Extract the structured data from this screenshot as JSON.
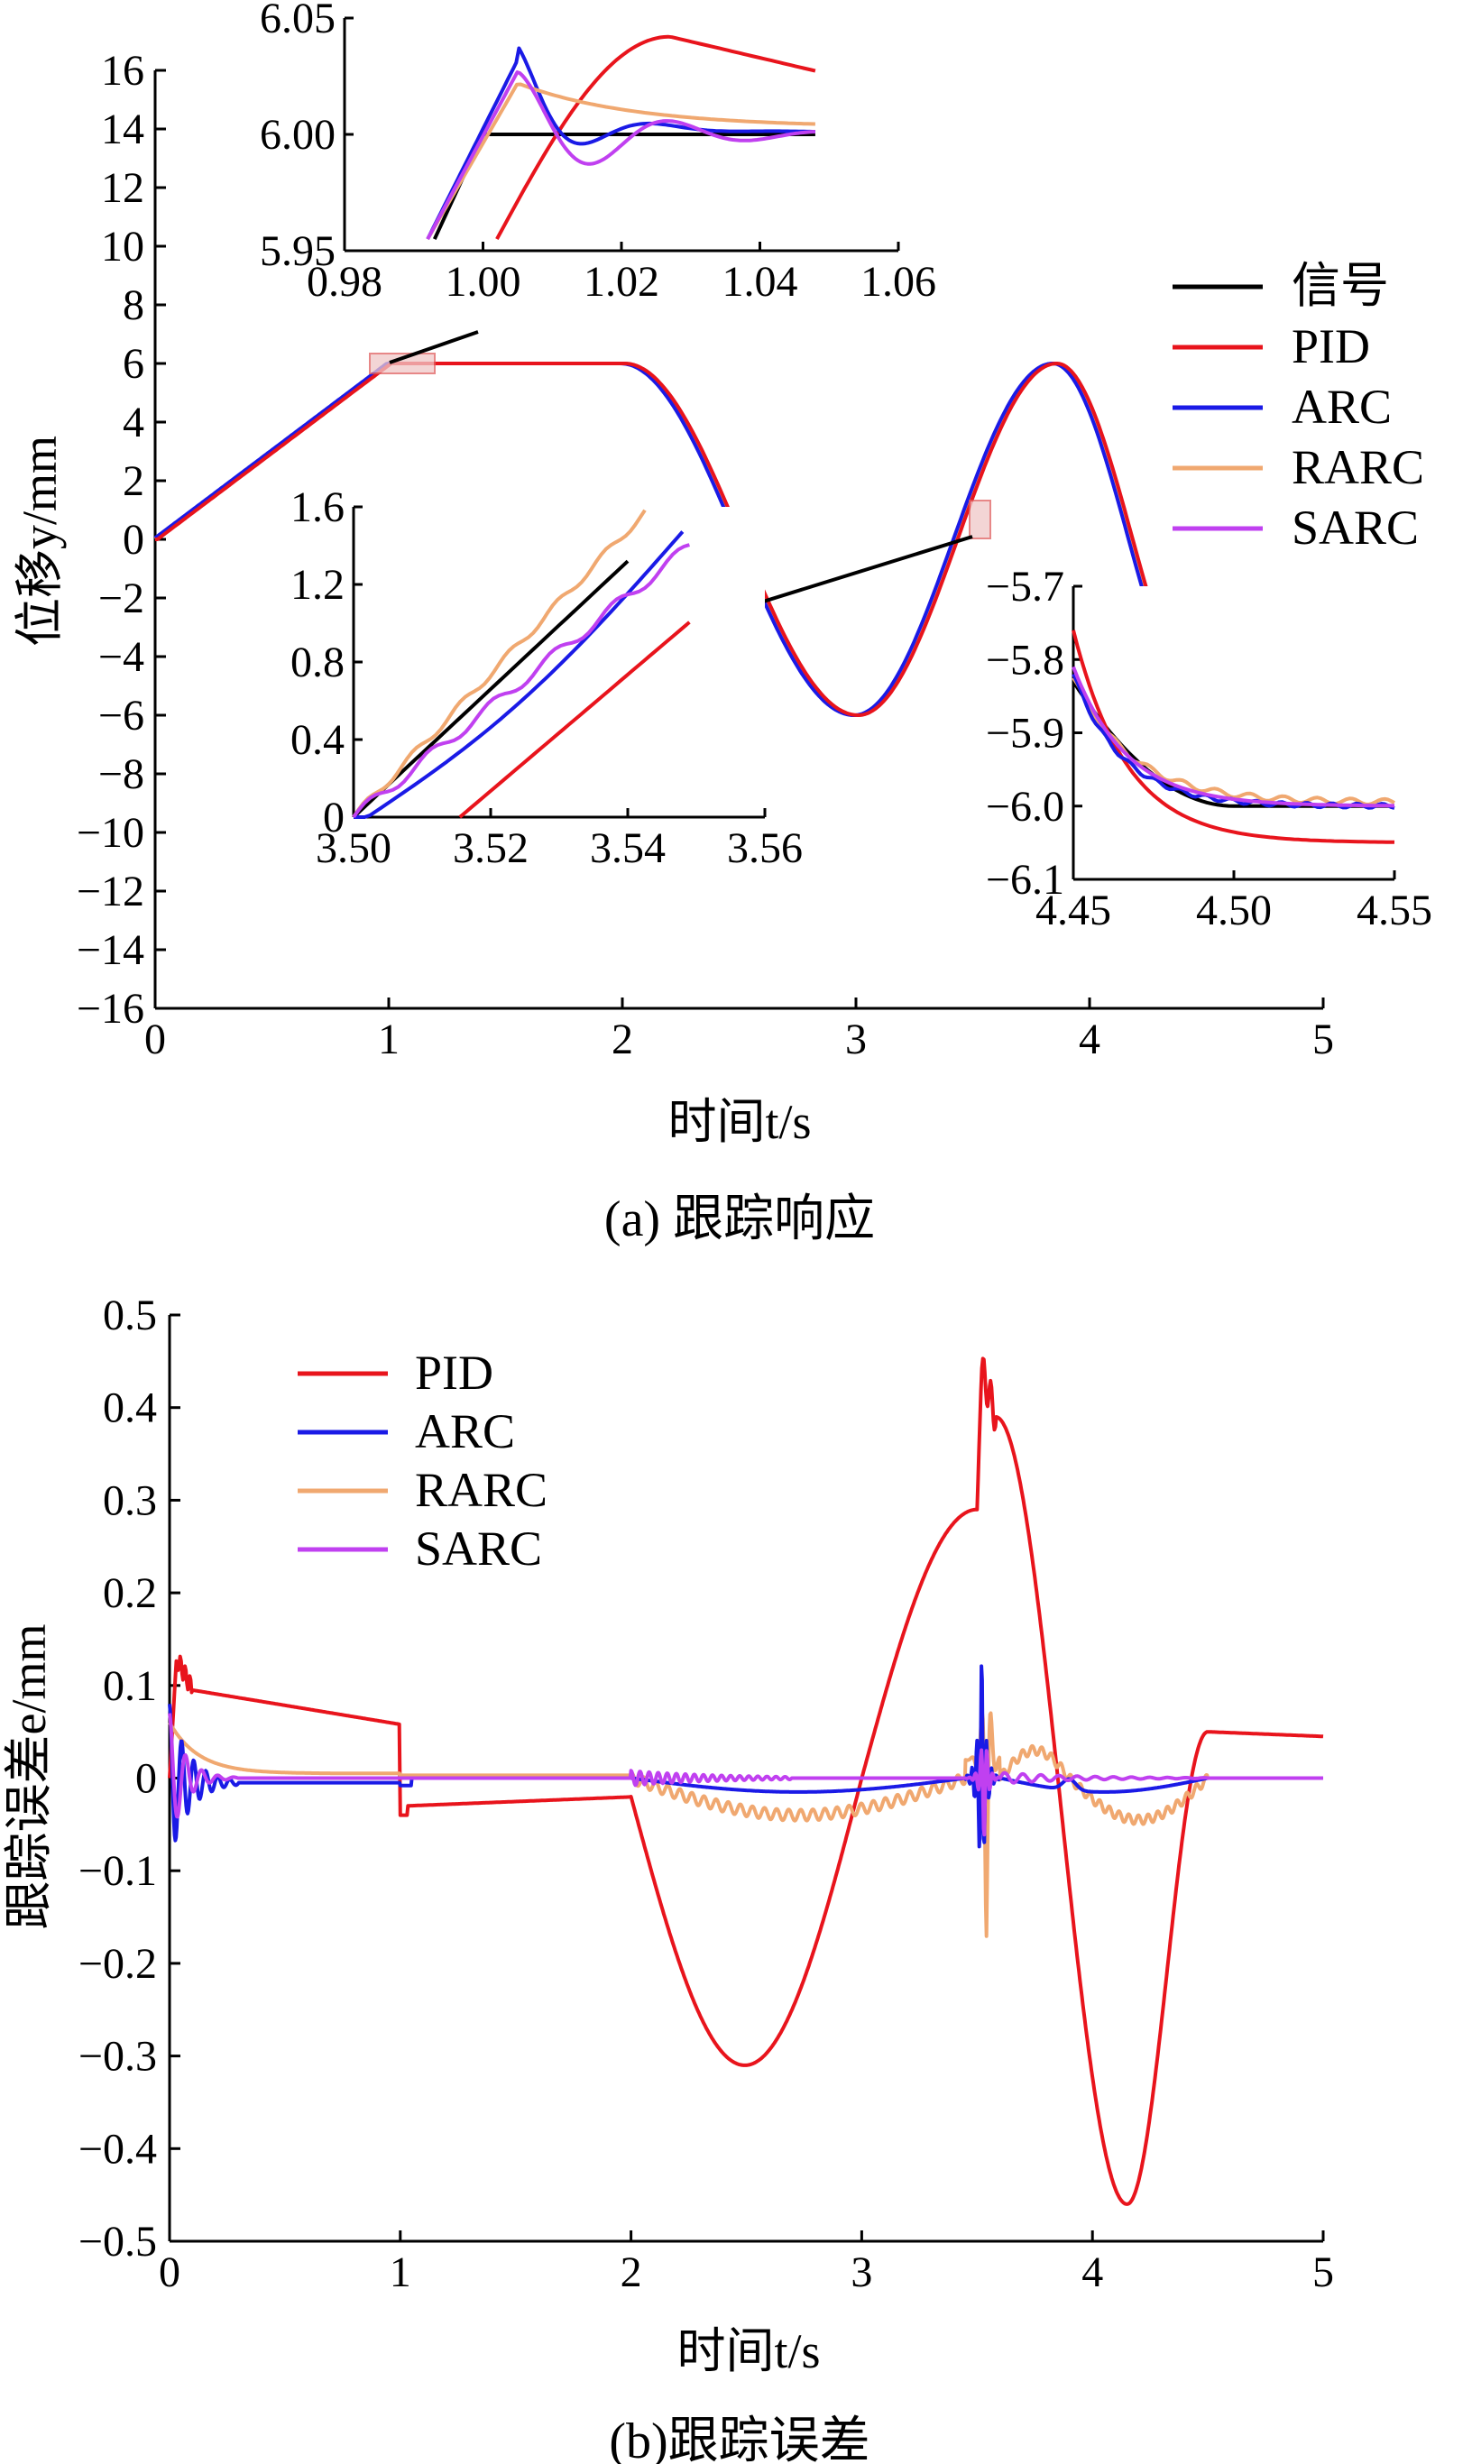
{
  "chart_data": [
    {
      "type": "line",
      "caption": "(a) 跟踪响应",
      "ylabel": "位移y/mm",
      "xlabel": "时间t/s",
      "xlim": [
        0,
        5
      ],
      "ylim": [
        -16,
        16
      ],
      "xticks": [
        0,
        1,
        2,
        3,
        4,
        5
      ],
      "yticks": [
        16,
        14,
        12,
        10,
        8,
        6,
        4,
        2,
        0,
        -2,
        -4,
        -6,
        -8,
        -10,
        -12,
        -14,
        -16
      ],
      "ytick_labels": [
        "16",
        "14",
        "12",
        "10",
        "8",
        "6",
        "4",
        "2",
        "0",
        "−2",
        "−4",
        "−6",
        "−8",
        "−10",
        "−12",
        "−14",
        "−16"
      ],
      "legend": [
        "信号",
        "PID",
        "ARC",
        "RARC",
        "SARC"
      ],
      "series_colors": {
        "信号": "#000000",
        "PID": "#e8141c",
        "ARC": "#1a1ae6",
        "RARC": "#f0a870",
        "SARC": "#c040f0"
      },
      "series": [
        {
          "name": "信号",
          "x": [
            0,
            1,
            2,
            3,
            3.85,
            4.5,
            5
          ],
          "values": [
            0,
            6,
            6,
            -6,
            6,
            -6,
            -6
          ],
          "note": "ramp, hold, sinusoidal swing, hold"
        },
        {
          "name": "PID",
          "values": "overlaps reference"
        },
        {
          "name": "ARC",
          "values": "overlaps reference"
        },
        {
          "name": "RARC",
          "values": "overlaps reference"
        },
        {
          "name": "SARC",
          "values": "overlaps reference"
        }
      ],
      "insets": [
        {
          "xlim": [
            0.98,
            1.06
          ],
          "ylim": [
            5.95,
            6.05
          ],
          "xticks": [
            "0.98",
            "1.00",
            "1.02",
            "1.04",
            "1.06"
          ],
          "yticks": [
            "6.05",
            "6.00",
            "5.95"
          ]
        },
        {
          "xlim": [
            3.5,
            3.56
          ],
          "ylim": [
            0,
            1.6
          ],
          "xticks": [
            "3.50",
            "3.52",
            "3.54",
            "3.56"
          ],
          "yticks": [
            "1.6",
            "1.2",
            "0.8",
            "0.4",
            "0"
          ]
        },
        {
          "xlim": [
            4.45,
            4.55
          ],
          "ylim": [
            -6.1,
            -5.7
          ],
          "xticks": [
            "4.45",
            "4.50",
            "4.55"
          ],
          "yticks": [
            "−5.7",
            "−5.8",
            "−5.9",
            "−6.0",
            "−6.1"
          ]
        }
      ]
    },
    {
      "type": "line",
      "caption": "(b)跟踪误差",
      "ylabel": "跟踪误差e/mm",
      "xlabel": "时间t/s",
      "xlim": [
        0,
        5
      ],
      "ylim": [
        -0.5,
        0.5
      ],
      "xticks": [
        0,
        1,
        2,
        3,
        4,
        5
      ],
      "yticks": [
        0.5,
        0.4,
        0.3,
        0.2,
        0.1,
        0,
        -0.1,
        -0.2,
        -0.3,
        -0.4,
        -0.5
      ],
      "ytick_labels": [
        "0.5",
        "0.4",
        "0.3",
        "0.2",
        "0.1",
        "0",
        "−0.1",
        "−0.2",
        "−0.3",
        "−0.4",
        "−0.5"
      ],
      "legend": [
        "PID",
        "ARC",
        "RARC",
        "SARC"
      ],
      "series": [
        {
          "name": "PID",
          "x": [
            0,
            0.03,
            0.1,
            1.0,
            1.02,
            2.0,
            2.5,
            3.0,
            3.5,
            3.52,
            3.6,
            4.15,
            4.5,
            5.0
          ],
          "values": [
            0,
            0.13,
            0.09,
            0.06,
            -0.04,
            -0.02,
            -0.3,
            0.0,
            0.29,
            0.44,
            0.39,
            -0.46,
            0.05,
            0.045
          ]
        },
        {
          "name": "ARC",
          "x": [
            0,
            0.05,
            0.3,
            1,
            2,
            2.15,
            3.4,
            3.52,
            3.6,
            4.0,
            4.5,
            5.0
          ],
          "values": [
            0,
            0.08,
            -0.005,
            0,
            0,
            -0.015,
            0,
            0.14,
            -0.005,
            -0.015,
            0,
            0
          ]
        },
        {
          "name": "RARC",
          "x": [
            0,
            0.05,
            0.3,
            1,
            2,
            2.4,
            3.0,
            3.5,
            3.55,
            3.6,
            3.9,
            4.1,
            4.5,
            5.0
          ],
          "values": [
            0,
            0.06,
            0.01,
            0.005,
            0.005,
            -0.04,
            -0.01,
            0.02,
            -0.18,
            0.08,
            0.03,
            -0.045,
            -0.02,
            0
          ]
        },
        {
          "name": "SARC",
          "x": [
            0,
            0.05,
            0.3,
            1,
            2,
            2.7,
            3.5,
            3.55,
            4.0,
            4.5,
            5.0
          ],
          "values": [
            0,
            0.07,
            0,
            0,
            0.005,
            0,
            0,
            -0.07,
            0.005,
            0,
            0
          ]
        }
      ]
    }
  ]
}
